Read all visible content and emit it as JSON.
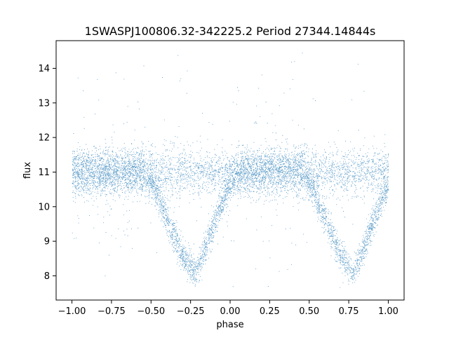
{
  "chart_data": {
    "type": "scatter",
    "title": "1SWASPJ100806.32-342225.2 Period 27344.14844s",
    "xlabel": "phase",
    "ylabel": "flux",
    "xlim": [
      -1.1,
      1.1
    ],
    "ylim": [
      7.3,
      14.8
    ],
    "x_ticks": [
      -1.0,
      -0.75,
      -0.5,
      -0.25,
      0.0,
      0.25,
      0.5,
      0.75,
      1.0
    ],
    "x_tick_labels": [
      "−1.00",
      "−0.75",
      "−0.50",
      "−0.25",
      "0.00",
      "0.25",
      "0.50",
      "0.75",
      "1.00"
    ],
    "y_ticks": [
      8,
      9,
      10,
      11,
      12,
      13,
      14
    ],
    "y_tick_labels": [
      "8",
      "9",
      "10",
      "11",
      "12",
      "13",
      "14"
    ],
    "grid": false,
    "legend": "none",
    "marker_color": "#1f77b4",
    "series": [
      {
        "baseline_flux": 11.0,
        "eclipse_centers_phase": [
          -0.22,
          0.78
        ],
        "eclipse_min_flux": 8.1,
        "phase_range": [
          -1.0,
          1.0
        ],
        "x": [
          -1.0,
          -0.9,
          -0.8,
          -0.7,
          -0.6,
          -0.5,
          -0.45,
          -0.4,
          -0.35,
          -0.3,
          -0.25,
          -0.22,
          -0.2,
          -0.15,
          -0.1,
          -0.05,
          0.0,
          0.05,
          0.1,
          0.2,
          0.3,
          0.4,
          0.5,
          0.55,
          0.6,
          0.65,
          0.7,
          0.75,
          0.78,
          0.8,
          0.85,
          0.9,
          0.95,
          1.0
        ],
        "y": [
          11.0,
          11.0,
          11.0,
          11.0,
          11.0,
          10.7,
          10.2,
          9.6,
          9.1,
          8.6,
          8.25,
          8.1,
          8.3,
          8.9,
          9.5,
          10.1,
          10.6,
          10.9,
          11.0,
          11.0,
          11.0,
          11.0,
          10.7,
          10.2,
          9.6,
          9.1,
          8.6,
          8.25,
          8.1,
          8.3,
          8.9,
          9.5,
          10.1,
          10.6
        ]
      }
    ]
  }
}
